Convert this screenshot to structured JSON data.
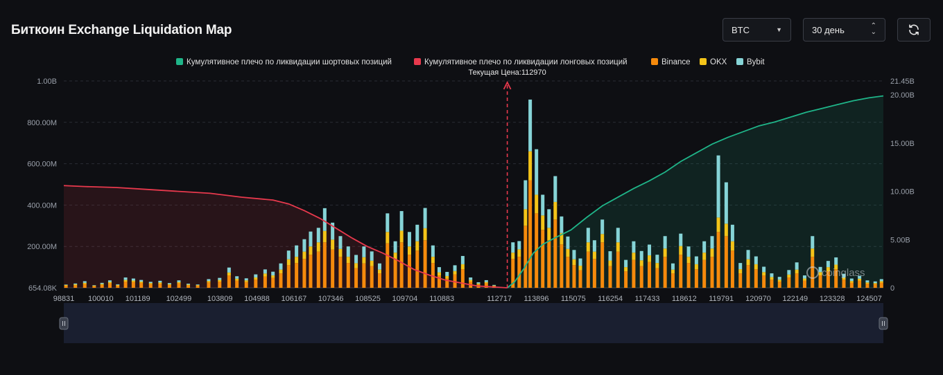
{
  "header": {
    "title": "Биткоин Exchange Liquidation Map",
    "coin_select": {
      "value": "BTC",
      "icon": "chevron-down-icon"
    },
    "period_select": {
      "value": "30 день",
      "icon": "up-down-arrows-icon"
    },
    "refresh_button": {
      "icon": "refresh-icon"
    }
  },
  "colors": {
    "background": "#0e0f13",
    "short_cumulative": "#1fb589",
    "long_cumulative": "#e8394d",
    "binance": "#f58a0c",
    "okx": "#f4c419",
    "bybit": "#86d4d7",
    "current_price_line": "#e8394d"
  },
  "watermark": "coinglass",
  "chart_data": {
    "type": "bar",
    "current_price_label": "Текущая Цена:112970",
    "current_price": 112970,
    "legend_position": "top-center",
    "legend": [
      {
        "name": "Кумулятивное плечо по ликвидации шортовых позиций",
        "color": "#1fb589"
      },
      {
        "name": "Кумулятивное плечо по ликвидации лонговых позиций",
        "color": "#e8394d"
      },
      {
        "name": "Binance",
        "color": "#f58a0c"
      },
      {
        "name": "OKX",
        "color": "#f4c419"
      },
      {
        "name": "Bybit",
        "color": "#86d4d7"
      }
    ],
    "x_tick_labels": [
      "98831",
      "100010",
      "101189",
      "102499",
      "103809",
      "104988",
      "106167",
      "107346",
      "108525",
      "109704",
      "110883",
      "112717",
      "113896",
      "115075",
      "116254",
      "117433",
      "118612",
      "119791",
      "120970",
      "122149",
      "123328",
      "124507"
    ],
    "x_range": [
      98831,
      124960
    ],
    "y_left_tick_labels": [
      "654.08K",
      "200.00M",
      "400.00M",
      "600.00M",
      "800.00M",
      "1.00B"
    ],
    "y_left_range_millions": [
      0,
      1000
    ],
    "y_right_tick_labels": [
      "0",
      "5.00B",
      "10.00B",
      "15.00B",
      "20.00B",
      "21.45B"
    ],
    "y_right_range_billions": [
      0,
      21.45
    ],
    "grid": true,
    "exchange_bars_millions": [
      [
        98900,
        10,
        4,
        2
      ],
      [
        99200,
        12,
        5,
        4
      ],
      [
        99500,
        18,
        6,
        8
      ],
      [
        99800,
        8,
        3,
        2
      ],
      [
        100050,
        14,
        5,
        5
      ],
      [
        100300,
        22,
        6,
        8
      ],
      [
        100550,
        10,
        4,
        3
      ],
      [
        100800,
        30,
        8,
        12
      ],
      [
        101050,
        28,
        7,
        10
      ],
      [
        101300,
        24,
        6,
        8
      ],
      [
        101600,
        18,
        5,
        6
      ],
      [
        101900,
        20,
        6,
        8
      ],
      [
        102200,
        14,
        4,
        5
      ],
      [
        102500,
        22,
        6,
        8
      ],
      [
        102800,
        12,
        4,
        4
      ],
      [
        103100,
        10,
        3,
        3
      ],
      [
        103450,
        26,
        7,
        9
      ],
      [
        103800,
        30,
        8,
        10
      ],
      [
        104100,
        60,
        14,
        24
      ],
      [
        104350,
        35,
        9,
        12
      ],
      [
        104650,
        28,
        8,
        10
      ],
      [
        104950,
        40,
        10,
        15
      ],
      [
        105250,
        55,
        14,
        20
      ],
      [
        105500,
        48,
        12,
        18
      ],
      [
        105750,
        70,
        18,
        30
      ],
      [
        106000,
        110,
        28,
        42
      ],
      [
        106250,
        120,
        30,
        55
      ],
      [
        106500,
        140,
        35,
        60
      ],
      [
        106700,
        160,
        40,
        72
      ],
      [
        106950,
        175,
        45,
        70
      ],
      [
        107150,
        220,
        55,
        110
      ],
      [
        107400,
        185,
        48,
        82
      ],
      [
        107650,
        150,
        38,
        62
      ],
      [
        107900,
        120,
        30,
        50
      ],
      [
        108150,
        95,
        24,
        40
      ],
      [
        108400,
        118,
        30,
        52
      ],
      [
        108650,
        105,
        26,
        45
      ],
      [
        108900,
        70,
        18,
        30
      ],
      [
        109150,
        215,
        55,
        90
      ],
      [
        109400,
        135,
        35,
        55
      ],
      [
        109600,
        220,
        56,
        95
      ],
      [
        109850,
        160,
        40,
        70
      ],
      [
        110100,
        180,
        45,
        80
      ],
      [
        110350,
        230,
        58,
        98
      ],
      [
        110600,
        120,
        30,
        55
      ],
      [
        110800,
        60,
        15,
        25
      ],
      [
        111050,
        45,
        12,
        20
      ],
      [
        111300,
        65,
        16,
        28
      ],
      [
        111550,
        90,
        24,
        40
      ],
      [
        111800,
        30,
        8,
        12
      ],
      [
        112050,
        16,
        5,
        6
      ],
      [
        112300,
        22,
        6,
        9
      ],
      [
        112550,
        8,
        3,
        3
      ],
      [
        113150,
        140,
        30,
        50
      ],
      [
        113350,
        150,
        36,
        40
      ],
      [
        113550,
        300,
        80,
        140
      ],
      [
        113700,
        520,
        140,
        250
      ],
      [
        113900,
        360,
        90,
        220
      ],
      [
        114100,
        280,
        70,
        100
      ],
      [
        114300,
        230,
        60,
        90
      ],
      [
        114500,
        330,
        85,
        125
      ],
      [
        114700,
        210,
        55,
        80
      ],
      [
        114900,
        150,
        38,
        60
      ],
      [
        115100,
        110,
        28,
        45
      ],
      [
        115300,
        85,
        22,
        35
      ],
      [
        115550,
        175,
        45,
        70
      ],
      [
        115750,
        140,
        35,
        55
      ],
      [
        116000,
        220,
        40,
        70
      ],
      [
        116250,
        105,
        27,
        45
      ],
      [
        116500,
        175,
        45,
        70
      ],
      [
        116750,
        80,
        20,
        35
      ],
      [
        117000,
        135,
        35,
        55
      ],
      [
        117250,
        105,
        28,
        45
      ],
      [
        117500,
        125,
        32,
        52
      ],
      [
        117750,
        95,
        25,
        40
      ],
      [
        118000,
        150,
        40,
        60
      ],
      [
        118250,
        70,
        18,
        30
      ],
      [
        118500,
        160,
        42,
        60
      ],
      [
        118750,
        120,
        30,
        50
      ],
      [
        119000,
        90,
        24,
        38
      ],
      [
        119250,
        135,
        35,
        55
      ],
      [
        119500,
        150,
        40,
        60
      ],
      [
        119700,
        270,
        70,
        300
      ],
      [
        119950,
        250,
        60,
        200
      ],
      [
        120150,
        180,
        45,
        80
      ],
      [
        120400,
        70,
        20,
        30
      ],
      [
        120650,
        110,
        28,
        45
      ],
      [
        120900,
        90,
        24,
        38
      ],
      [
        121150,
        60,
        16,
        26
      ],
      [
        121400,
        40,
        12,
        18
      ],
      [
        121650,
        30,
        9,
        14
      ],
      [
        121950,
        50,
        14,
        22
      ],
      [
        122200,
        70,
        18,
        35
      ],
      [
        122450,
        35,
        10,
        15
      ],
      [
        122700,
        150,
        40,
        60
      ],
      [
        122950,
        60,
        16,
        25
      ],
      [
        123200,
        80,
        20,
        30
      ],
      [
        123450,
        90,
        22,
        35
      ],
      [
        123700,
        40,
        10,
        18
      ],
      [
        123950,
        25,
        8,
        12
      ],
      [
        124200,
        35,
        9,
        14
      ],
      [
        124450,
        20,
        6,
        10
      ],
      [
        124700,
        18,
        5,
        8
      ],
      [
        124900,
        25,
        7,
        10
      ]
    ],
    "short_cumulative_billions": [
      [
        112970,
        0
      ],
      [
        113200,
        0.6
      ],
      [
        113500,
        2.0
      ],
      [
        113800,
        3.6
      ],
      [
        114100,
        4.5
      ],
      [
        114500,
        5.2
      ],
      [
        115000,
        6.0
      ],
      [
        115500,
        7.3
      ],
      [
        116000,
        8.5
      ],
      [
        116500,
        9.4
      ],
      [
        117000,
        10.3
      ],
      [
        117500,
        11.1
      ],
      [
        118000,
        12.0
      ],
      [
        118500,
        13.1
      ],
      [
        119000,
        14.0
      ],
      [
        119500,
        14.9
      ],
      [
        120000,
        15.6
      ],
      [
        120500,
        16.2
      ],
      [
        121000,
        16.8
      ],
      [
        121500,
        17.2
      ],
      [
        122000,
        17.7
      ],
      [
        122500,
        18.2
      ],
      [
        123000,
        18.6
      ],
      [
        123500,
        19.0
      ],
      [
        124000,
        19.4
      ],
      [
        124500,
        19.7
      ],
      [
        124960,
        19.9
      ]
    ],
    "long_cumulative_billions": [
      [
        98831,
        10.6
      ],
      [
        99500,
        10.5
      ],
      [
        100500,
        10.4
      ],
      [
        101500,
        10.2
      ],
      [
        102500,
        10.0
      ],
      [
        103500,
        9.8
      ],
      [
        104500,
        9.4
      ],
      [
        105500,
        9.1
      ],
      [
        106000,
        8.7
      ],
      [
        106500,
        8.0
      ],
      [
        107000,
        7.2
      ],
      [
        107500,
        6.2
      ],
      [
        108000,
        5.2
      ],
      [
        108500,
        4.3
      ],
      [
        109000,
        3.6
      ],
      [
        109500,
        2.8
      ],
      [
        110000,
        1.9
      ],
      [
        110500,
        1.3
      ],
      [
        111000,
        0.8
      ],
      [
        111500,
        0.5
      ],
      [
        112000,
        0.2
      ],
      [
        112500,
        0.1
      ],
      [
        112970,
        0
      ]
    ]
  }
}
